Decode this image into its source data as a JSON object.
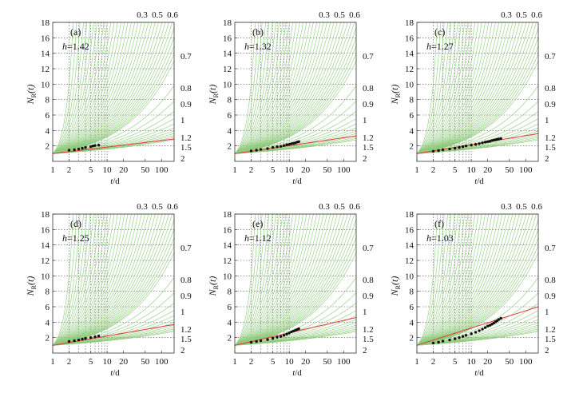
{
  "chart_data": [
    {
      "type": "scatter",
      "panel_label": "(a)",
      "h_label": "h=1.42",
      "h": 1.42,
      "xscale": "log",
      "xlim": [
        1,
        170
      ],
      "ylim": [
        0,
        18
      ],
      "xticks": [
        "1",
        "2",
        "5",
        "10",
        "20",
        "50",
        "100"
      ],
      "yticks": [
        "2",
        "4",
        "6",
        "8",
        "10",
        "12",
        "14",
        "16",
        "18"
      ],
      "xlabel": "t/d",
      "ylabel": "N_R(t)",
      "reference_curve_labels": [
        "0.3",
        "0.5",
        "0.6",
        "0.7",
        "0.8",
        "0.9",
        "1",
        "1.2",
        "1.5",
        "2"
      ],
      "fit_line": {
        "x": [
          1,
          170
        ],
        "y": [
          1.0,
          2.9
        ]
      },
      "points": {
        "x": [
          2,
          2.5,
          3,
          3.5,
          4,
          5,
          5.5,
          6,
          7
        ],
        "y": [
          1.45,
          1.5,
          1.6,
          1.7,
          1.8,
          1.9,
          2.0,
          2.05,
          2.1
        ]
      }
    },
    {
      "type": "scatter",
      "panel_label": "(b)",
      "h_label": "h=1.32",
      "h": 1.32,
      "xscale": "log",
      "xlim": [
        1,
        170
      ],
      "ylim": [
        0,
        18
      ],
      "xticks": [
        "1",
        "2",
        "5",
        "10",
        "20",
        "50",
        "100"
      ],
      "yticks": [
        "2",
        "4",
        "6",
        "8",
        "10",
        "12",
        "14",
        "16",
        "18"
      ],
      "xlabel": "t/d",
      "ylabel": "N_R(t)",
      "reference_curve_labels": [
        "0.3",
        "0.5",
        "0.6",
        "0.7",
        "0.8",
        "0.9",
        "1",
        "1.2",
        "1.5",
        "2"
      ],
      "fit_line": {
        "x": [
          1,
          170
        ],
        "y": [
          1.0,
          3.3
        ]
      },
      "points": {
        "x": [
          2,
          2.5,
          3,
          4,
          5,
          6,
          7,
          8,
          9,
          10,
          11,
          12,
          13,
          14,
          15
        ],
        "y": [
          1.35,
          1.45,
          1.55,
          1.65,
          1.8,
          1.9,
          1.95,
          2.05,
          2.15,
          2.2,
          2.3,
          2.35,
          2.4,
          2.5,
          2.55
        ]
      }
    },
    {
      "type": "scatter",
      "panel_label": "(c)",
      "h_label": "h=1.27",
      "h": 1.27,
      "xscale": "log",
      "xlim": [
        1,
        170
      ],
      "ylim": [
        0,
        18
      ],
      "xticks": [
        "1",
        "2",
        "5",
        "10",
        "20",
        "50",
        "100"
      ],
      "yticks": [
        "2",
        "4",
        "6",
        "8",
        "10",
        "12",
        "14",
        "16",
        "18"
      ],
      "xlabel": "t/d",
      "ylabel": "N_R(t)",
      "reference_curve_labels": [
        "0.3",
        "0.5",
        "0.6",
        "0.7",
        "0.8",
        "0.9",
        "1",
        "1.2",
        "1.5",
        "2"
      ],
      "fit_line": {
        "x": [
          1,
          170
        ],
        "y": [
          1.0,
          3.6
        ]
      },
      "points": {
        "x": [
          2,
          2.5,
          3,
          4,
          5,
          6,
          7,
          8,
          10,
          12,
          14,
          16,
          18,
          20,
          22,
          24,
          26,
          28,
          30,
          32,
          35
        ],
        "y": [
          1.3,
          1.4,
          1.5,
          1.6,
          1.7,
          1.8,
          1.9,
          2.0,
          2.1,
          2.2,
          2.3,
          2.4,
          2.5,
          2.55,
          2.6,
          2.7,
          2.75,
          2.8,
          2.85,
          2.9,
          2.95
        ]
      }
    },
    {
      "type": "scatter",
      "panel_label": "(d)",
      "h_label": "h=1.25",
      "h": 1.25,
      "xscale": "log",
      "xlim": [
        1,
        170
      ],
      "ylim": [
        0,
        18
      ],
      "xticks": [
        "1",
        "2",
        "5",
        "10",
        "20",
        "50",
        "100"
      ],
      "yticks": [
        "2",
        "4",
        "6",
        "8",
        "10",
        "12",
        "14",
        "16",
        "18"
      ],
      "xlabel": "t/d",
      "ylabel": "N_R(t)",
      "reference_curve_labels": [
        "0.3",
        "0.5",
        "0.6",
        "0.7",
        "0.8",
        "0.9",
        "1",
        "1.2",
        "1.5",
        "2"
      ],
      "fit_line": {
        "x": [
          1,
          170
        ],
        "y": [
          1.0,
          3.7
        ]
      },
      "points": {
        "x": [
          2,
          2.5,
          3,
          3.5,
          4,
          5,
          6,
          7
        ],
        "y": [
          1.5,
          1.6,
          1.7,
          1.8,
          1.9,
          2.0,
          2.1,
          2.2
        ]
      }
    },
    {
      "type": "scatter",
      "panel_label": "(e)",
      "h_label": "h=1.12",
      "h": 1.12,
      "xscale": "log",
      "xlim": [
        1,
        170
      ],
      "ylim": [
        0,
        18
      ],
      "xticks": [
        "1",
        "2",
        "5",
        "10",
        "20",
        "50",
        "100"
      ],
      "yticks": [
        "2",
        "4",
        "6",
        "8",
        "10",
        "12",
        "14",
        "16",
        "18"
      ],
      "xlabel": "t/d",
      "ylabel": "N_R(t)",
      "reference_curve_labels": [
        "0.3",
        "0.5",
        "0.6",
        "0.7",
        "0.8",
        "0.9",
        "1",
        "1.2",
        "1.5",
        "2"
      ],
      "fit_line": {
        "x": [
          1,
          170
        ],
        "y": [
          1.0,
          4.6
        ]
      },
      "points": {
        "x": [
          2,
          2.5,
          3,
          4,
          5,
          6,
          7,
          8,
          9,
          10,
          11,
          12,
          13,
          14,
          15
        ],
        "y": [
          1.4,
          1.5,
          1.6,
          1.75,
          1.9,
          2.05,
          2.15,
          2.3,
          2.45,
          2.6,
          2.75,
          2.85,
          2.95,
          3.05,
          3.15
        ]
      }
    },
    {
      "type": "scatter",
      "panel_label": "(f)",
      "h_label": "h=1.03",
      "h": 1.03,
      "xscale": "log",
      "xlim": [
        1,
        170
      ],
      "ylim": [
        0,
        18
      ],
      "xticks": [
        "1",
        "2",
        "5",
        "10",
        "20",
        "50",
        "100"
      ],
      "yticks": [
        "2",
        "4",
        "6",
        "8",
        "10",
        "12",
        "14",
        "16",
        "18"
      ],
      "xlabel": "t/d",
      "ylabel": "N_R(t)",
      "reference_curve_labels": [
        "0.3",
        "0.5",
        "0.6",
        "0.7",
        "0.8",
        "0.9",
        "1",
        "1.2",
        "1.5",
        "2"
      ],
      "fit_line": {
        "x": [
          1,
          170
        ],
        "y": [
          1.0,
          6.0
        ]
      },
      "points": {
        "x": [
          2,
          2.5,
          3,
          4,
          5,
          6,
          7,
          8,
          10,
          12,
          14,
          16,
          18,
          20,
          22,
          24,
          26,
          28,
          30,
          32,
          35
        ],
        "y": [
          1.3,
          1.4,
          1.55,
          1.7,
          1.85,
          2.0,
          2.15,
          2.3,
          2.5,
          2.7,
          2.9,
          3.1,
          3.3,
          3.5,
          3.6,
          3.75,
          3.9,
          4.05,
          4.2,
          4.35,
          4.5
        ]
      }
    }
  ],
  "colors": {
    "reference_curve": "#8fcb7c",
    "fit_line": "#e33b3b",
    "points": "#111111",
    "axes": "#333333",
    "grid": "#555555"
  }
}
